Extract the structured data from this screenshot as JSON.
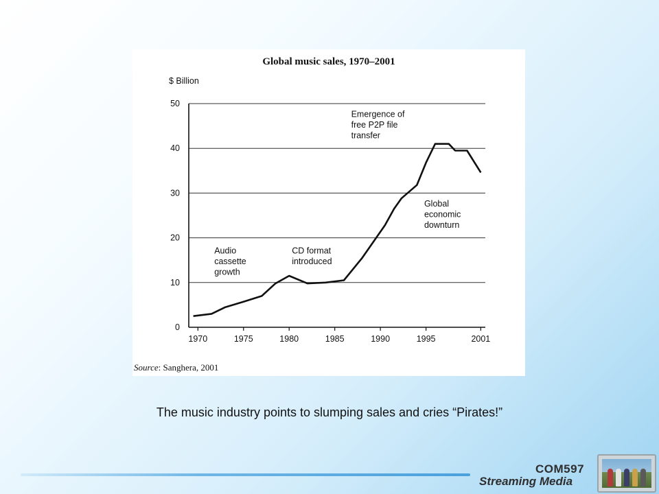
{
  "chart_data": {
    "type": "line",
    "title": "Global music sales, 1970–2001",
    "ylabel": "$ Billion",
    "xlabel": "",
    "ylim": [
      0,
      50
    ],
    "xlim": [
      1969,
      2001.5
    ],
    "yticks": [
      0,
      10,
      20,
      30,
      40,
      50
    ],
    "xticks": [
      "1970",
      "1975",
      "1980",
      "1985",
      "1990",
      "1995",
      "2001"
    ],
    "xtick_values": [
      1970,
      1975,
      1980,
      1985,
      1990,
      1995,
      2001
    ],
    "grid": "horizontal",
    "series": [
      {
        "x": [
          1969.5,
          1971.5,
          1973,
          1975,
          1977,
          1978.5,
          1980,
          1982,
          1984,
          1986,
          1988,
          1990.5,
          1991.5,
          1992.3,
          1994,
          1995,
          1996,
          1997.5,
          1998.2,
          1999.5,
          2001
        ],
        "values": [
          2.5,
          3,
          4.5,
          5.7,
          7,
          9.8,
          11.5,
          9.8,
          10,
          10.5,
          15.5,
          22.8,
          26.5,
          28.8,
          31.8,
          36.8,
          41,
          41,
          39.5,
          39.5,
          34.6
        ]
      }
    ],
    "annotations": [
      {
        "lines": [
          "Audio",
          "cassette",
          "growth"
        ],
        "x": 1971.8,
        "y": 16.5
      },
      {
        "lines": [
          "CD format",
          "introduced"
        ],
        "x": 1980.3,
        "y": 16.5
      },
      {
        "lines": [
          "Emergence of",
          "free P2P file",
          "transfer"
        ],
        "x": 1986.8,
        "y": 47
      },
      {
        "lines": [
          "Global",
          "economic",
          "downturn"
        ],
        "x": 1994.8,
        "y": 27
      }
    ],
    "source_label": "Source",
    "source_text": ": Sanghera, 2001"
  },
  "caption": "The music industry points to slumping sales and cries “Pirates!”",
  "logo": {
    "line1": "COM597",
    "line2_a": "Streaming",
    "line2_b": "Media"
  },
  "colors": {
    "line": "#111111",
    "grid": "#333333"
  }
}
